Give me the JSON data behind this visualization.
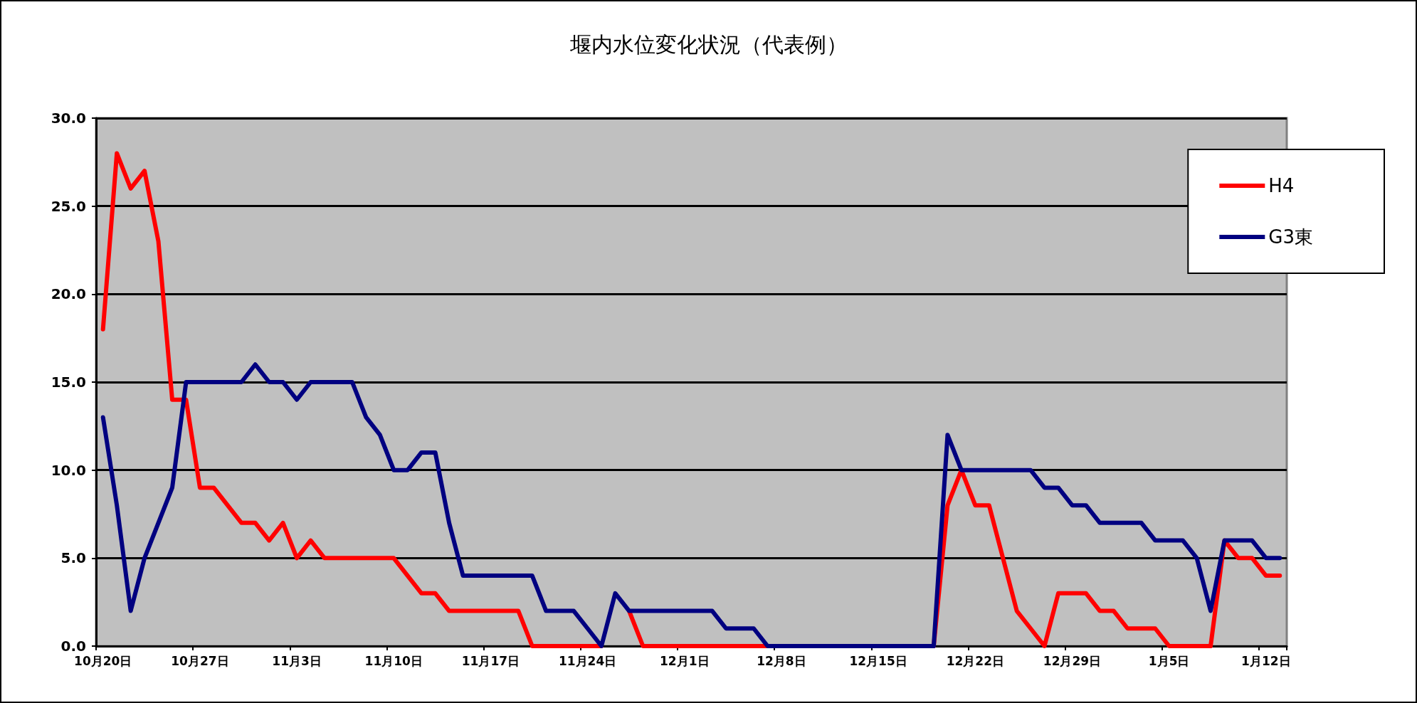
{
  "chart_data": {
    "type": "line",
    "title": "堰内水位変化状況（代表例）",
    "categories": [
      "10月20日",
      null,
      null,
      null,
      null,
      null,
      null,
      "10月27日",
      null,
      null,
      null,
      null,
      null,
      null,
      "11月3日",
      null,
      null,
      null,
      null,
      null,
      null,
      "11月10日",
      null,
      null,
      null,
      null,
      null,
      null,
      "11月17日",
      null,
      null,
      null,
      null,
      null,
      null,
      "11月24日",
      null,
      null,
      null,
      null,
      null,
      null,
      "12月1日",
      null,
      null,
      null,
      null,
      null,
      null,
      "12月8日",
      null,
      null,
      null,
      null,
      null,
      null,
      "12月15日",
      null,
      null,
      null,
      null,
      null,
      null,
      "12月22日",
      null,
      null,
      null,
      null,
      null,
      null,
      "12月29日",
      null,
      null,
      null,
      null,
      null,
      null,
      "1月5日",
      null,
      null,
      null,
      null,
      null,
      null,
      "1月12日",
      null
    ],
    "series": [
      {
        "name": "H4",
        "color": "#ff0000",
        "values": [
          18,
          28,
          26,
          27,
          23,
          14,
          14,
          9,
          9,
          8,
          7,
          7,
          6,
          7,
          5,
          6,
          5,
          5,
          5,
          5,
          5,
          5,
          4,
          3,
          3,
          2,
          2,
          2,
          2,
          2,
          2,
          0,
          0,
          0,
          0,
          0,
          0,
          null,
          2,
          0,
          0,
          0,
          0,
          0,
          0,
          0,
          0,
          0,
          0,
          null,
          null,
          null,
          null,
          null,
          null,
          null,
          null,
          null,
          null,
          null,
          0,
          8,
          10,
          8,
          8,
          5,
          2,
          1,
          0,
          3,
          3,
          3,
          2,
          2,
          1,
          1,
          1,
          0,
          0,
          0,
          0,
          6,
          5,
          5,
          4,
          4
        ]
      },
      {
        "name": "G3東",
        "color": "#000080",
        "values": [
          13,
          8,
          2,
          5,
          7,
          9,
          15,
          15,
          15,
          15,
          15,
          16,
          15,
          15,
          14,
          15,
          15,
          15,
          15,
          13,
          12,
          10,
          10,
          11,
          11,
          7,
          4,
          4,
          4,
          4,
          4,
          4,
          2,
          2,
          2,
          1,
          0,
          3,
          2,
          2,
          2,
          2,
          2,
          2,
          2,
          1,
          1,
          1,
          0,
          0,
          0,
          0,
          0,
          0,
          0,
          0,
          0,
          0,
          0,
          0,
          0,
          12,
          10,
          10,
          10,
          10,
          10,
          10,
          9,
          9,
          8,
          8,
          7,
          7,
          7,
          7,
          6,
          6,
          6,
          5,
          2,
          6,
          6,
          6,
          5,
          5
        ]
      }
    ],
    "ylim": [
      0,
      30
    ],
    "yticks": [
      {
        "value": 0,
        "label": "0.0"
      },
      {
        "value": 5,
        "label": "5.0"
      },
      {
        "value": 10,
        "label": "10.0"
      },
      {
        "value": 15,
        "label": "15.0"
      },
      {
        "value": 20,
        "label": "20.0"
      },
      {
        "value": 25,
        "label": "25.0"
      },
      {
        "value": 30,
        "label": "30.0"
      }
    ],
    "grid": "y",
    "legend": "top right",
    "marker": "none",
    "line_style": "solid"
  }
}
